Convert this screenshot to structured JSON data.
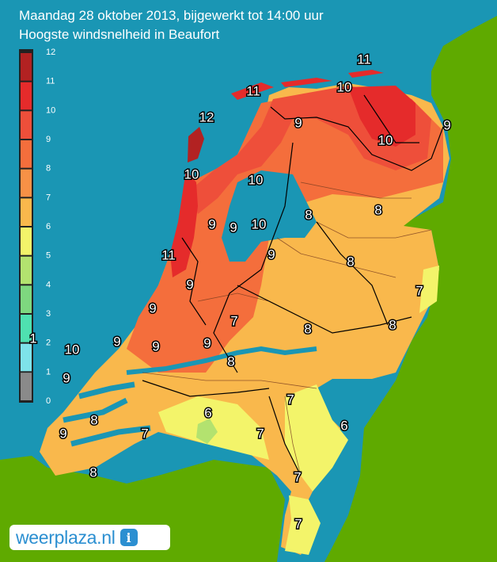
{
  "header": {
    "title_line1": "Maandag 28 oktober 2013, bijgewerkt tot 14:00 uur",
    "title_line2": "Hoogste windsnelheid in Beaufort"
  },
  "legend": {
    "levels": [
      {
        "label": "12",
        "color": "#b22222"
      },
      {
        "label": "11",
        "color": "#e52b2b"
      },
      {
        "label": "10",
        "color": "#ee4f3a"
      },
      {
        "label": "9",
        "color": "#f46e3c"
      },
      {
        "label": "8",
        "color": "#f79146"
      },
      {
        "label": "7",
        "color": "#f9b84c"
      },
      {
        "label": "6",
        "color": "#f3f46a"
      },
      {
        "label": "5",
        "color": "#b3e26f"
      },
      {
        "label": "4",
        "color": "#7ed77f"
      },
      {
        "label": "3",
        "color": "#4fe0b0"
      },
      {
        "label": "2",
        "color": "#7ee3ea"
      },
      {
        "label": "1",
        "color": "#a5c8c8"
      },
      {
        "label": "0",
        "color": "#8a8a8a"
      }
    ]
  },
  "map_labels": {
    "wadden_11_right": "11",
    "wadden_10": "10",
    "wadden_11_left": "11",
    "texel_12": "12",
    "groningen_9": "9",
    "groningen_10": "10",
    "friesland_9_east": "9",
    "nh_10_north": "10",
    "ijssel_10": "10",
    "nh_coast_11": "11",
    "nh_9": "9",
    "ijssel_9": "9",
    "ijssel_10b": "10",
    "drenthe_8": "8",
    "overijssel_8": "8",
    "flevo_9": "9",
    "twente_7": "7",
    "utrecht_9": "9",
    "zh_9": "9",
    "gelderland_7": "7",
    "gelderland_8": "8",
    "achterhoek_8": "8",
    "zh_9b": "9",
    "zh_9c": "9",
    "waal_9": "9",
    "rivier_8": "8",
    "sea_1": "1",
    "sea_10": "10",
    "sea_9": "9",
    "brabant_7": "7",
    "brabant_6": "6",
    "limburg_6": "6",
    "zeeland_8": "8",
    "zeeland_9": "9",
    "zeeland_7": "7",
    "brabant_7b": "7",
    "limburg_7": "7",
    "zeeland_8b": "8",
    "limburg_7b": "7"
  },
  "logo": {
    "brand_text": "weerplaza.nl",
    "info_glyph": "i"
  }
}
